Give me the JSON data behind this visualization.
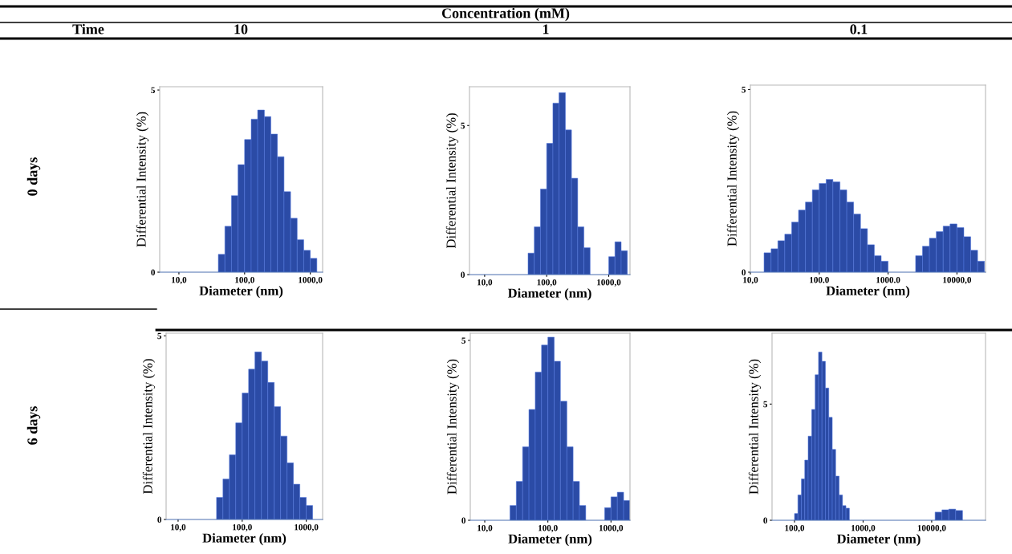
{
  "chart_data": [
    {
      "type": "other",
      "title": "Concentration (mM)",
      "annotations": [
        "Time",
        "10",
        "1",
        "0.1",
        "0 days",
        "6 days"
      ]
    },
    {
      "type": "histogram",
      "color": "#2b4ba6",
      "xlabel": "Diameter (nm)",
      "ylabel": "Differential Intensity (%)",
      "log": "x",
      "xlim": [
        5.1,
        1540
      ],
      "ylim": [
        0,
        5.09
      ],
      "xticks": [
        {
          "value": 10,
          "label": "10,0"
        },
        {
          "value": 100,
          "label": "100,0"
        },
        {
          "value": 1000,
          "label": "1000,0"
        }
      ],
      "yticks": [
        0,
        5
      ],
      "bins": [
        39.8,
        50.1,
        63.1,
        79.4,
        100,
        126,
        158,
        200,
        251,
        316,
        398,
        501,
        631,
        794,
        1000,
        1259
      ],
      "values": [
        0.49,
        1.26,
        2.1,
        2.95,
        3.64,
        4.2,
        4.45,
        4.27,
        3.79,
        3.17,
        2.21,
        1.48,
        0.89,
        0.6,
        0.38
      ]
    },
    {
      "type": "histogram",
      "color": "#2b4ba6",
      "xlabel": "Diameter (nm)",
      "ylabel": "Differential Intensity (%)",
      "log": "x",
      "xlim": [
        5.7,
        2200
      ],
      "ylim": [
        0,
        6.3
      ],
      "xticks": [
        {
          "value": 10,
          "label": "10,0"
        },
        {
          "value": 100,
          "label": "100,0"
        },
        {
          "value": 1000,
          "label": "1000,0"
        }
      ],
      "yticks": [
        0,
        5
      ],
      "bins": [
        50.1,
        63.1,
        79.4,
        100,
        126,
        158,
        200,
        251,
        316,
        398,
        501,
        1000,
        1259,
        1585,
        1995
      ],
      "values": [
        0.72,
        1.6,
        2.87,
        4.4,
        5.75,
        6.1,
        4.85,
        3.23,
        1.6,
        0.9,
        0,
        0.6,
        1.1,
        0.8
      ]
    },
    {
      "type": "histogram",
      "color": "#2b4ba6",
      "xlabel": "Diameter (nm)",
      "ylabel": "Differential Intensity (%)",
      "log": "x",
      "xlim": [
        10,
        26000
      ],
      "ylim": [
        0,
        5.12
      ],
      "xticks": [
        {
          "value": 10,
          "label": "10,0"
        },
        {
          "value": 100,
          "label": "100.0"
        },
        {
          "value": 1000,
          "label": "1000.0"
        },
        {
          "value": 10000,
          "label": "10000,0"
        }
      ],
      "yticks": [
        0,
        5
      ],
      "bins": [
        15.8,
        20.0,
        25.1,
        31.6,
        39.8,
        50.1,
        63.1,
        79.4,
        100,
        126,
        158,
        200,
        251,
        316,
        398,
        501,
        631,
        794,
        1000,
        2512,
        3162,
        3981,
        5012,
        6310,
        7943,
        10000,
        12589,
        15849,
        19953,
        25119
      ],
      "values": [
        0.53,
        0.64,
        0.86,
        1.04,
        1.37,
        1.7,
        1.92,
        2.25,
        2.43,
        2.54,
        2.47,
        2.25,
        1.92,
        1.59,
        1.19,
        0.75,
        0.45,
        0.3,
        0,
        0.45,
        0.71,
        0.93,
        1.11,
        1.26,
        1.32,
        1.22,
        0.97,
        0.6,
        0.3
      ]
    },
    {
      "type": "histogram",
      "color": "#2b4ba6",
      "xlabel": "Diameter (nm)",
      "ylabel": "Differential Intensity (%)",
      "log": "x",
      "xlim": [
        6.5,
        1800
      ],
      "ylim": [
        0,
        5.07
      ],
      "xticks": [
        {
          "value": 10,
          "label": "10,0"
        },
        {
          "value": 100,
          "label": "100,0"
        },
        {
          "value": 1000,
          "label": "1000,0"
        }
      ],
      "yticks": [
        0,
        5
      ],
      "bins": [
        39.8,
        50.1,
        63.1,
        79.4,
        100,
        126,
        158,
        200,
        251,
        316,
        398,
        501,
        631,
        794,
        1000,
        1259
      ],
      "values": [
        0.6,
        1.1,
        1.76,
        2.63,
        3.44,
        4.09,
        4.56,
        4.31,
        3.73,
        3.07,
        2.27,
        1.54,
        0.96,
        0.6,
        0.38
      ]
    },
    {
      "type": "histogram",
      "color": "#2b4ba6",
      "xlabel": "Diameter (nm)",
      "ylabel": "Differential Intensity (%)",
      "log": "x",
      "xlim": [
        5.9,
        2000
      ],
      "ylim": [
        0,
        5.2
      ],
      "xticks": [
        {
          "value": 10,
          "label": "10,0"
        },
        {
          "value": 100,
          "label": "100,0"
        },
        {
          "value": 1000,
          "label": "1000,0"
        }
      ],
      "yticks": [
        0,
        5
      ],
      "bins": [
        25.1,
        31.6,
        39.8,
        50.1,
        63.1,
        79.4,
        100,
        126,
        158,
        200,
        251,
        316,
        398,
        794,
        1000,
        1259,
        1585,
        1995
      ],
      "values": [
        0.41,
        1.08,
        2.04,
        3.08,
        4.12,
        4.87,
        5.09,
        4.42,
        3.31,
        2.04,
        1.08,
        0.41,
        0,
        0.35,
        0.65,
        0.78,
        0.55
      ]
    },
    {
      "type": "histogram",
      "color": "#2b4ba6",
      "xlabel": "Diameter (nm)",
      "ylabel": "Differential Intensity (%)",
      "log": "x",
      "xlim": [
        47,
        61000
      ],
      "ylim": [
        0,
        8.05
      ],
      "xticks": [
        {
          "value": 100,
          "label": "100,0"
        },
        {
          "value": 1000,
          "label": "1000,0"
        },
        {
          "value": 10000,
          "label": "10000,0"
        }
      ],
      "yticks": [
        0,
        5
      ],
      "bins": [
        100,
        112,
        126,
        141,
        158,
        178,
        200,
        224,
        251,
        282,
        316,
        355,
        398,
        447,
        501,
        562,
        631,
        11220,
        14125,
        17783,
        22387,
        28184
      ],
      "values": [
        0.29,
        1.09,
        1.78,
        2.59,
        3.62,
        4.77,
        6.26,
        7.24,
        6.84,
        5.69,
        4.43,
        3.05,
        1.9,
        1.09,
        0.63,
        0.52,
        0,
        0.35,
        0.45,
        0.48,
        0.42
      ]
    }
  ]
}
